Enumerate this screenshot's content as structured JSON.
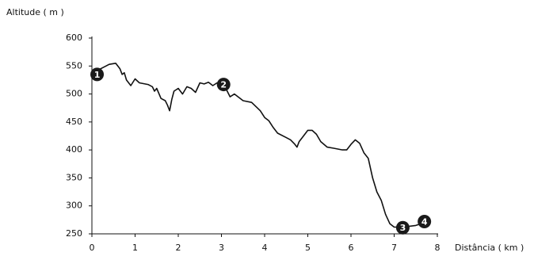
{
  "chart_data": {
    "type": "line",
    "x_label": "Distância ( km )",
    "y_label": "Altitude ( m )",
    "x": [
      0,
      0.2,
      0.4,
      0.55,
      0.65,
      0.7,
      0.75,
      0.8,
      0.9,
      1.0,
      1.1,
      1.3,
      1.4,
      1.45,
      1.5,
      1.6,
      1.7,
      1.75,
      1.8,
      1.85,
      1.9,
      2.0,
      2.1,
      2.2,
      2.3,
      2.4,
      2.5,
      2.6,
      2.7,
      2.8,
      2.9,
      3.0,
      3.1,
      3.2,
      3.3,
      3.5,
      3.7,
      3.9,
      4.0,
      4.1,
      4.2,
      4.3,
      4.5,
      4.6,
      4.7,
      4.75,
      4.8,
      4.9,
      5.0,
      5.1,
      5.2,
      5.3,
      5.45,
      5.6,
      5.8,
      5.9,
      6.0,
      6.1,
      6.2,
      6.3,
      6.4,
      6.5,
      6.6,
      6.7,
      6.8,
      6.9,
      7.0,
      7.2,
      7.5,
      7.7
    ],
    "series": [
      {
        "color": "#111111",
        "values": [
          535,
          545,
          553,
          555,
          545,
          535,
          538,
          525,
          515,
          527,
          520,
          517,
          513,
          505,
          510,
          492,
          488,
          480,
          470,
          490,
          505,
          510,
          500,
          513,
          510,
          503,
          520,
          518,
          521,
          515,
          520,
          515,
          510,
          495,
          500,
          488,
          485,
          470,
          458,
          452,
          440,
          430,
          422,
          418,
          410,
          405,
          415,
          425,
          435,
          435,
          428,
          415,
          405,
          403,
          400,
          400,
          410,
          418,
          412,
          395,
          385,
          350,
          325,
          310,
          285,
          268,
          262,
          262,
          265,
          270
        ]
      }
    ],
    "annotations": [
      {
        "label": "1",
        "x": 0.12,
        "y": 535
      },
      {
        "label": "2",
        "x": 3.05,
        "y": 517
      },
      {
        "label": "3",
        "x": 7.2,
        "y": 261
      },
      {
        "label": "4",
        "x": 7.7,
        "y": 272
      }
    ],
    "xlim": [
      0,
      8
    ],
    "xticks": [
      0,
      1,
      2,
      3,
      4,
      5,
      6,
      7,
      8
    ],
    "ylim": [
      250,
      600
    ],
    "yticks": [
      250,
      300,
      350,
      400,
      450,
      500,
      550,
      600
    ]
  }
}
